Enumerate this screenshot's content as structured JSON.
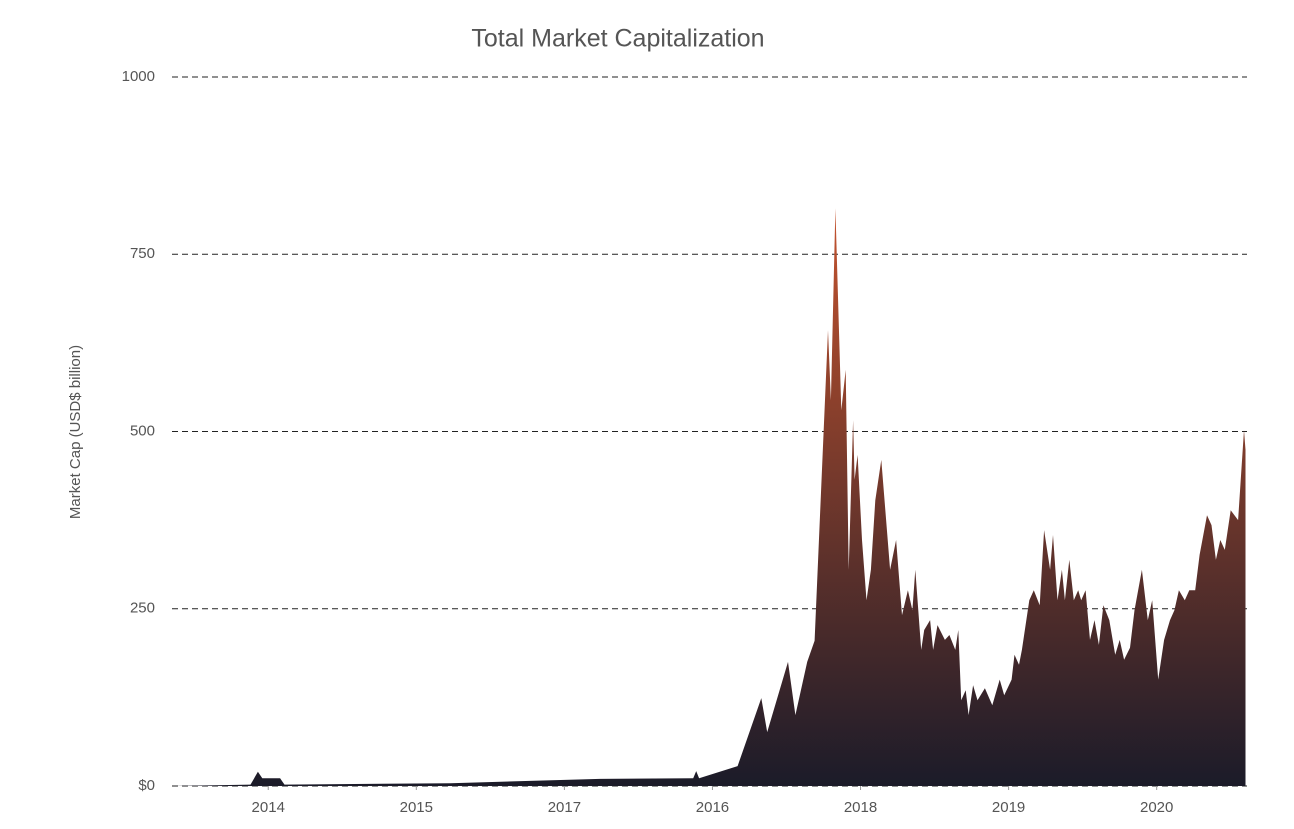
{
  "chart_data": {
    "type": "area",
    "title": "Total Market Capitalization",
    "y_label": "Market Cap (USD$ billion)",
    "x": [
      -0.65,
      -0.12,
      -0.07,
      -0.04,
      0.08,
      0.11,
      1.23,
      2.24,
      2.87,
      2.89,
      2.91,
      3.17,
      3.33,
      3.37,
      3.51,
      3.56,
      3.64,
      3.69,
      3.78,
      3.8,
      3.83,
      3.87,
      3.9,
      3.92,
      3.95,
      3.96,
      3.98,
      4.01,
      4.04,
      4.07,
      4.1,
      4.14,
      4.2,
      4.24,
      4.28,
      4.32,
      4.35,
      4.37,
      4.41,
      4.43,
      4.47,
      4.49,
      4.52,
      4.57,
      4.6,
      4.64,
      4.66,
      4.68,
      4.71,
      4.73,
      4.76,
      4.79,
      4.84,
      4.89,
      4.94,
      4.97,
      5.02,
      5.04,
      5.07,
      5.09,
      5.14,
      5.17,
      5.21,
      5.24,
      5.28,
      5.3,
      5.33,
      5.36,
      5.38,
      5.41,
      5.44,
      5.47,
      5.49,
      5.52,
      5.55,
      5.58,
      5.61,
      5.64,
      5.68,
      5.72,
      5.75,
      5.78,
      5.82,
      5.85,
      5.9,
      5.94,
      5.97,
      6.01,
      6.05,
      6.09,
      6.12,
      6.15,
      6.19,
      6.22,
      6.26,
      6.29,
      6.34,
      6.37,
      6.4,
      6.43,
      6.46,
      6.5,
      6.55,
      6.59,
      6.6
    ],
    "values": [
      0,
      2,
      20,
      11,
      11,
      2,
      4,
      10,
      11,
      21,
      11,
      28,
      124,
      76,
      175,
      100,
      175,
      205,
      643,
      544,
      815,
      530,
      587,
      305,
      516,
      432,
      467,
      347,
      262,
      305,
      403,
      460,
      305,
      347,
      241,
      276,
      248,
      305,
      192,
      220,
      234,
      192,
      227,
      206,
      213,
      192,
      220,
      121,
      135,
      100,
      142,
      121,
      138,
      114,
      150,
      128,
      150,
      185,
      171,
      192,
      262,
      276,
      255,
      361,
      305,
      354,
      262,
      305,
      262,
      319,
      262,
      276,
      262,
      276,
      206,
      234,
      199,
      255,
      234,
      185,
      206,
      178,
      195,
      248,
      305,
      234,
      262,
      150,
      206,
      234,
      248,
      276,
      262,
      276,
      276,
      326,
      382,
      368,
      319,
      347,
      333,
      389,
      375,
      502,
      474
    ],
    "xlim": [
      -0.65,
      6.61
    ],
    "xticks": [
      {
        "value": 0,
        "label": "2014"
      },
      {
        "value": 1,
        "label": "2015"
      },
      {
        "value": 2,
        "label": "2017"
      },
      {
        "value": 3,
        "label": "2016"
      },
      {
        "value": 4,
        "label": "2018"
      },
      {
        "value": 5,
        "label": "2019"
      },
      {
        "value": 6,
        "label": "2020"
      }
    ],
    "ylim": [
      0,
      1000
    ],
    "yticks": [
      {
        "value": 0,
        "label": "$0"
      },
      250,
      500,
      750,
      1000
    ],
    "grid": true,
    "gradient": [
      "#1b1b29",
      "#c4532e"
    ]
  }
}
